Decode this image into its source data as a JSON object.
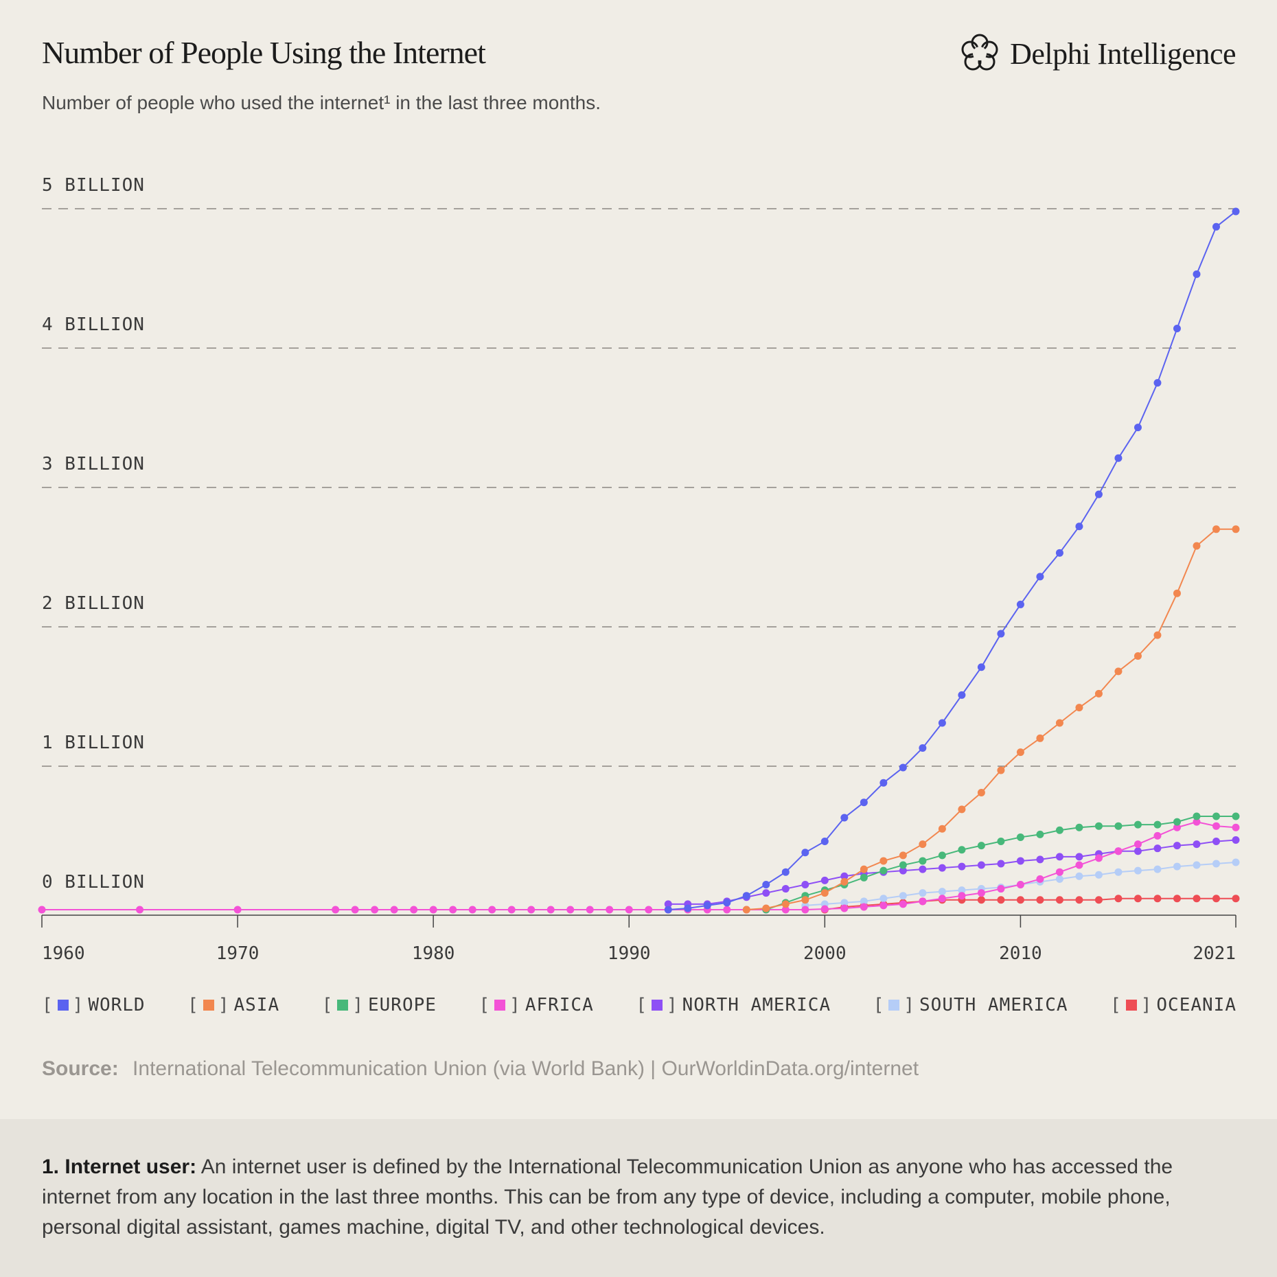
{
  "header": {
    "title": "Number of People Using the Internet",
    "subtitle": "Number of people who used the internet¹ in the last three months.",
    "brand": "Delphi Intelligence"
  },
  "source": {
    "label": "Source:",
    "text": "International Telecommunication Union (via World Bank) | OurWorldinData.org/internet"
  },
  "footnote": {
    "term": "1. Internet user:",
    "text": " An internet user is defined by the International Telecommunication Union as anyone who has accessed the internet from any location in the last three months. This can be from any type of device, including a computer, mobile phone, personal digital assistant, games machine, digital TV, and other technological devices."
  },
  "chart_data": {
    "type": "line",
    "title": "Number of People Using the Internet",
    "xlabel": "",
    "ylabel": "",
    "xlim": [
      1960,
      2021
    ],
    "ylim": [
      0,
      5
    ],
    "y_unit": "billion",
    "grid": "horizontal dashed",
    "legend_position": "bottom",
    "y_ticks": [
      {
        "value": 0,
        "label": "0 BILLION"
      },
      {
        "value": 1,
        "label": "1 BILLION"
      },
      {
        "value": 2,
        "label": "2 BILLION"
      },
      {
        "value": 3,
        "label": "3 BILLION"
      },
      {
        "value": 4,
        "label": "4 BILLION"
      },
      {
        "value": 5,
        "label": "5 BILLION"
      }
    ],
    "x_ticks": [
      {
        "value": 1960,
        "label": "1960"
      },
      {
        "value": 1970,
        "label": "1970"
      },
      {
        "value": 1980,
        "label": "1980"
      },
      {
        "value": 1990,
        "label": "1990"
      },
      {
        "value": 2000,
        "label": "2000"
      },
      {
        "value": 2010,
        "label": "2010"
      },
      {
        "value": 2021,
        "label": "2021"
      }
    ],
    "series": [
      {
        "name": "WORLD",
        "color": "#5b63f0",
        "x": [
          1992,
          1993,
          1994,
          1995,
          1996,
          1997,
          1998,
          1999,
          2000,
          2001,
          2002,
          2003,
          2004,
          2005,
          2006,
          2007,
          2008,
          2009,
          2010,
          2011,
          2012,
          2013,
          2014,
          2015,
          2016,
          2017,
          2018,
          2019,
          2020,
          2021
        ],
        "y": [
          0.0,
          0.01,
          0.03,
          0.05,
          0.1,
          0.18,
          0.27,
          0.41,
          0.49,
          0.66,
          0.77,
          0.91,
          1.02,
          1.16,
          1.34,
          1.54,
          1.74,
          1.98,
          2.19,
          2.39,
          2.56,
          2.75,
          2.98,
          3.24,
          3.46,
          3.78,
          4.17,
          4.56,
          4.9,
          5.01
        ]
      },
      {
        "name": "ASIA",
        "color": "#f2874f",
        "x": [
          1996,
          1997,
          1998,
          1999,
          2000,
          2001,
          2002,
          2003,
          2004,
          2005,
          2006,
          2007,
          2008,
          2009,
          2010,
          2011,
          2012,
          2013,
          2014,
          2015,
          2016,
          2017,
          2018,
          2019,
          2020,
          2021
        ],
        "y": [
          0.0,
          0.01,
          0.04,
          0.07,
          0.12,
          0.2,
          0.29,
          0.35,
          0.39,
          0.47,
          0.58,
          0.72,
          0.84,
          1.0,
          1.13,
          1.23,
          1.34,
          1.45,
          1.55,
          1.71,
          1.82,
          1.97,
          2.27,
          2.61,
          2.73,
          2.73
        ]
      },
      {
        "name": "EUROPE",
        "color": "#47b87a",
        "x": [
          1997,
          1998,
          1999,
          2000,
          2001,
          2002,
          2003,
          2004,
          2005,
          2006,
          2007,
          2008,
          2009,
          2010,
          2011,
          2012,
          2013,
          2014,
          2015,
          2016,
          2017,
          2018,
          2019,
          2020,
          2021
        ],
        "y": [
          0.0,
          0.05,
          0.1,
          0.14,
          0.18,
          0.23,
          0.28,
          0.32,
          0.35,
          0.39,
          0.43,
          0.46,
          0.49,
          0.52,
          0.54,
          0.57,
          0.59,
          0.6,
          0.6,
          0.61,
          0.61,
          0.63,
          0.67,
          0.67,
          0.67
        ]
      },
      {
        "name": "AFRICA",
        "color": "#f352d6",
        "x": [
          1960,
          1965,
          1970,
          1975,
          1976,
          1977,
          1978,
          1979,
          1980,
          1981,
          1982,
          1983,
          1984,
          1985,
          1986,
          1987,
          1988,
          1989,
          1990,
          1991,
          1992,
          1993,
          1994,
          1995,
          1996,
          1997,
          1998,
          1999,
          2000,
          2001,
          2002,
          2003,
          2004,
          2005,
          2006,
          2007,
          2008,
          2009,
          2010,
          2011,
          2012,
          2013,
          2014,
          2015,
          2016,
          2017,
          2018,
          2019,
          2020,
          2021
        ],
        "y": [
          0,
          0,
          0,
          0,
          0,
          0,
          0,
          0,
          0,
          0,
          0,
          0,
          0,
          0,
          0,
          0,
          0,
          0,
          0,
          0,
          0,
          0,
          0,
          0,
          0,
          0,
          0,
          0,
          0.005,
          0.01,
          0.02,
          0.03,
          0.04,
          0.06,
          0.08,
          0.1,
          0.12,
          0.15,
          0.18,
          0.22,
          0.27,
          0.32,
          0.37,
          0.42,
          0.47,
          0.53,
          0.59,
          0.63,
          0.6,
          0.59
        ]
      },
      {
        "name": "NORTH AMERICA",
        "color": "#8e4ff5",
        "x": [
          1992,
          1993,
          1994,
          1995,
          1996,
          1997,
          1998,
          1999,
          2000,
          2001,
          2002,
          2003,
          2004,
          2005,
          2006,
          2007,
          2008,
          2009,
          2010,
          2011,
          2012,
          2013,
          2014,
          2015,
          2016,
          2017,
          2018,
          2019,
          2020,
          2021
        ],
        "y": [
          0.04,
          0.04,
          0.04,
          0.06,
          0.09,
          0.12,
          0.15,
          0.18,
          0.21,
          0.24,
          0.26,
          0.27,
          0.28,
          0.29,
          0.3,
          0.31,
          0.32,
          0.33,
          0.35,
          0.36,
          0.38,
          0.38,
          0.4,
          0.42,
          0.42,
          0.44,
          0.46,
          0.47,
          0.49,
          0.5
        ]
      },
      {
        "name": "SOUTH AMERICA",
        "color": "#b5cdf7",
        "x": [
          1999,
          2000,
          2001,
          2002,
          2003,
          2004,
          2005,
          2006,
          2007,
          2008,
          2009,
          2010,
          2011,
          2012,
          2013,
          2014,
          2015,
          2016,
          2017,
          2018,
          2019,
          2020,
          2021
        ],
        "y": [
          0.03,
          0.04,
          0.05,
          0.06,
          0.08,
          0.1,
          0.12,
          0.13,
          0.14,
          0.15,
          0.16,
          0.18,
          0.2,
          0.22,
          0.24,
          0.25,
          0.27,
          0.28,
          0.29,
          0.31,
          0.32,
          0.33,
          0.34
        ]
      },
      {
        "name": "OCEANIA",
        "color": "#ee4d54",
        "x": [
          2000,
          2001,
          2002,
          2003,
          2004,
          2005,
          2006,
          2007,
          2008,
          2009,
          2010,
          2011,
          2012,
          2013,
          2014,
          2015,
          2016,
          2017,
          2018,
          2019,
          2020,
          2021
        ],
        "y": [
          0.0,
          0.02,
          0.03,
          0.04,
          0.05,
          0.06,
          0.07,
          0.07,
          0.07,
          0.07,
          0.07,
          0.07,
          0.07,
          0.07,
          0.07,
          0.08,
          0.08,
          0.08,
          0.08,
          0.08,
          0.08,
          0.08
        ]
      }
    ]
  }
}
